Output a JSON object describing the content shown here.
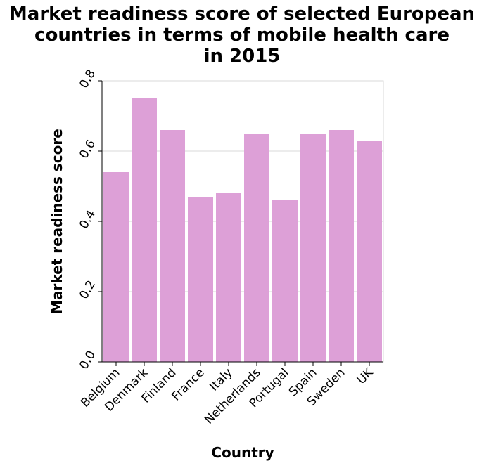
{
  "chart_data": {
    "type": "bar",
    "title_lines": [
      "Market readiness score of selected European",
      "countries in terms of mobile health care",
      "in 2015"
    ],
    "xlabel": "Country",
    "ylabel": "Market readiness score",
    "categories": [
      "Belgium",
      "Denmark",
      "Finland",
      "France",
      "Italy",
      "Netherlands",
      "Portugal",
      "Spain",
      "Sweden",
      "UK"
    ],
    "values": [
      0.54,
      0.75,
      0.66,
      0.47,
      0.48,
      0.65,
      0.46,
      0.65,
      0.66,
      0.63
    ],
    "ylim": [
      0,
      0.8
    ],
    "yticks": [
      "0.0",
      "0.2",
      "0.4",
      "0.6",
      "0.8"
    ],
    "ytick_values": [
      0,
      0.2,
      0.4,
      0.6,
      0.8
    ],
    "bar_color": "#dda0d7",
    "grid": true,
    "legend": "none"
  }
}
